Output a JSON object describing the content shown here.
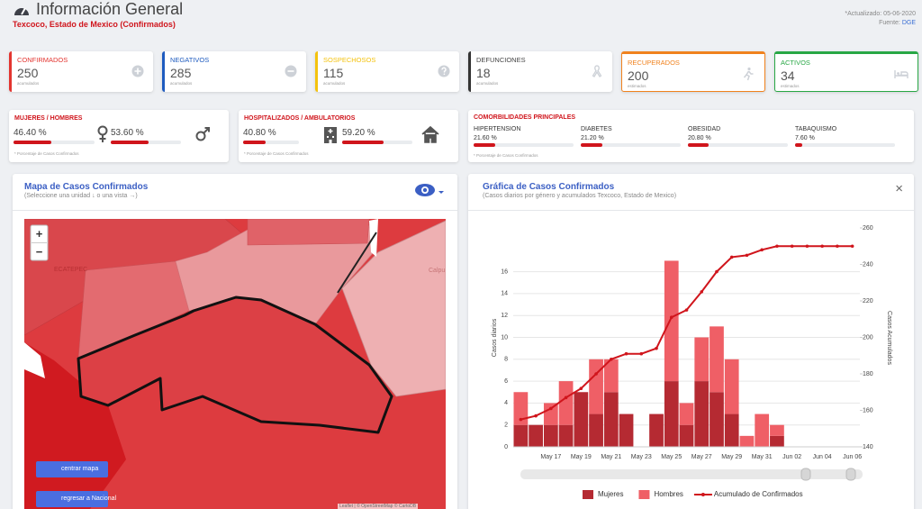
{
  "header": {
    "title": "Información General",
    "subtitle": "Texcoco, Estado de Mexico (Confirmados)",
    "updated": "*Actualizado: 05-06-2020",
    "source_label": "Fuente:",
    "source": "DGE"
  },
  "cards": [
    {
      "title": "CONFIRMADOS",
      "value": 250,
      "note": "acumulados",
      "color": "#e3342f"
    },
    {
      "title": "NEGATIVOS",
      "value": 285,
      "note": "acumulados",
      "color": "#1e5bbf"
    },
    {
      "title": "SOSPECHOSOS",
      "value": 115,
      "note": "acumulados",
      "color": "#f4c20d"
    },
    {
      "title": "DEFUNCIONES",
      "value": 18,
      "note": "acumulados",
      "color": "#333333"
    },
    {
      "title": "RECUPERADOS",
      "value": 200,
      "note": "estimados",
      "color": "#f0821e"
    },
    {
      "title": "ACTIVOS",
      "value": 34,
      "note": "estimados",
      "color": "#28a745"
    }
  ],
  "gender": {
    "title": "MUJERES / HOMBRES",
    "items": [
      {
        "percent": 46.4,
        "label": "46.40 %"
      },
      {
        "percent": 53.6,
        "label": "53.60 %"
      }
    ],
    "footnote": "* Porcentaje de Casos Confirmados"
  },
  "hospital": {
    "title": "HOSPITALIZADOS / AMBULATORIOS",
    "items": [
      {
        "percent": 40.8,
        "label": "40.80 %"
      },
      {
        "percent": 59.2,
        "label": "59.20 %"
      }
    ],
    "footnote": "* Porcentaje de Casos Confirmados"
  },
  "comorbidities": {
    "title": "COMORBILIDADES PRINCIPALES",
    "items": [
      {
        "name": "HIPERTENSION",
        "percent": 21.6,
        "label": "21.60 %"
      },
      {
        "name": "DIABETES",
        "percent": 21.2,
        "label": "21.20 %"
      },
      {
        "name": "OBESIDAD",
        "percent": 20.8,
        "label": "20.80 %"
      },
      {
        "name": "TABAQUISMO",
        "percent": 7.6,
        "label": "7.60 %"
      }
    ],
    "footnote": "* Porcentaje de Casos Confirmados"
  },
  "map": {
    "title": "Mapa de Casos Confirmados",
    "subtitle": "(Seleccione una unidad ↓ o una vista →)",
    "zoom_in": "+",
    "zoom_out": "−",
    "center_button": "centrar mapa",
    "national_button": "regresar a Nacional",
    "labels": [
      "ECATEPEC",
      "Calpu"
    ],
    "attribution": "Leaflet | © OpenStreetMap © CartoDB"
  },
  "chart_close": "×",
  "chart_data": {
    "type": "combo",
    "title": "Gráfica de Casos Confirmados",
    "subtitle": "(Casos diarios por género y acumulados Texcoco, Estado de Mexico)",
    "y_label": "Casos diarios",
    "y2_label": "Casos Acumulados",
    "categories": [
      null,
      null,
      "May 17",
      null,
      "May 19",
      null,
      "May 21",
      null,
      "May 23",
      null,
      "May 25",
      null,
      "May 27",
      null,
      "May 29",
      null,
      "May 31",
      null,
      "Jun 02",
      null,
      "Jun 04",
      null,
      "Jun 06"
    ],
    "series": [
      {
        "name": "Mujeres",
        "type": "bar",
        "color": "#b52a32",
        "values": [
          2,
          2,
          2,
          2,
          5,
          3,
          5,
          3,
          0,
          3,
          6,
          2,
          6,
          5,
          3,
          0,
          0,
          1,
          0,
          0,
          0,
          0,
          0
        ]
      },
      {
        "name": "Hombres",
        "type": "bar",
        "color": "#ef5f66",
        "values": [
          3,
          0,
          2,
          4,
          0,
          5,
          3,
          0,
          0,
          0,
          11,
          2,
          4,
          6,
          5,
          1,
          3,
          1,
          0,
          0,
          0,
          0,
          0
        ]
      },
      {
        "name": "Acumulado de Confirmados",
        "type": "line",
        "axis": "y2",
        "color": "#d0151c",
        "values": [
          155,
          157,
          161,
          167,
          172,
          180,
          188,
          191,
          191,
          194,
          211,
          215,
          225,
          236,
          244,
          245,
          248,
          250,
          250,
          250,
          250,
          250,
          250
        ]
      }
    ],
    "stacked": true,
    "ylim": [
      0,
      20
    ],
    "yticks": [
      0,
      2,
      4,
      6,
      8,
      10,
      12,
      14,
      16
    ],
    "y2lim": [
      140,
      260
    ],
    "y2ticks": [
      140,
      160,
      180,
      200,
      220,
      240,
      260
    ],
    "grid": true,
    "legend": "bottom"
  }
}
